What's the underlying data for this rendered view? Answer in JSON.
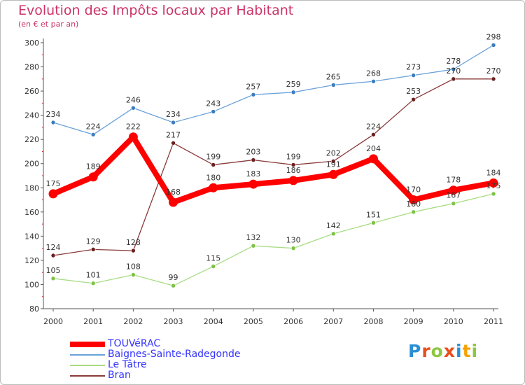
{
  "title": "Evolution des Impôts locaux par Habitant",
  "subtitle": "(en € et par an)",
  "logo": {
    "text": "Proxiti",
    "letter_colors": [
      "#2b8fd6",
      "#e94e1b",
      "#8dc63f",
      "#e94e1b",
      "#2b8fd6",
      "#f4a300",
      "#8dc63f"
    ]
  },
  "chart_data": {
    "type": "line",
    "x": [
      2000,
      2001,
      2002,
      2003,
      2004,
      2005,
      2006,
      2007,
      2008,
      2009,
      2010,
      2011
    ],
    "ylim": [
      80,
      300
    ],
    "yticks": [
      80,
      100,
      120,
      140,
      160,
      180,
      200,
      220,
      240,
      260,
      280,
      300
    ],
    "grid": false,
    "legend_position": "bottom-left",
    "series": [
      {
        "name": "TOUVéRAC",
        "values": [
          175,
          189,
          222,
          168,
          180,
          183,
          186,
          191,
          204,
          170,
          178,
          184
        ],
        "color": "#ff0000",
        "marker_color": "#ff0000"
      },
      {
        "name": "Baignes-Sainte-Radegonde",
        "values": [
          234,
          224,
          246,
          234,
          243,
          257,
          259,
          265,
          268,
          273,
          278,
          298
        ],
        "color": "#6aa2d8",
        "marker_color": "#3a7cc2"
      },
      {
        "name": "Le Tâtre",
        "values": [
          105,
          101,
          108,
          99,
          115,
          132,
          130,
          142,
          151,
          160,
          167,
          175
        ],
        "color": "#a8dc84",
        "marker_color": "#7cc243"
      },
      {
        "name": "Bran",
        "values": [
          124,
          129,
          128,
          217,
          199,
          203,
          199,
          202,
          224,
          253,
          270,
          270
        ],
        "color": "#8a3a3a",
        "marker_color": "#6b1f1f"
      }
    ]
  }
}
